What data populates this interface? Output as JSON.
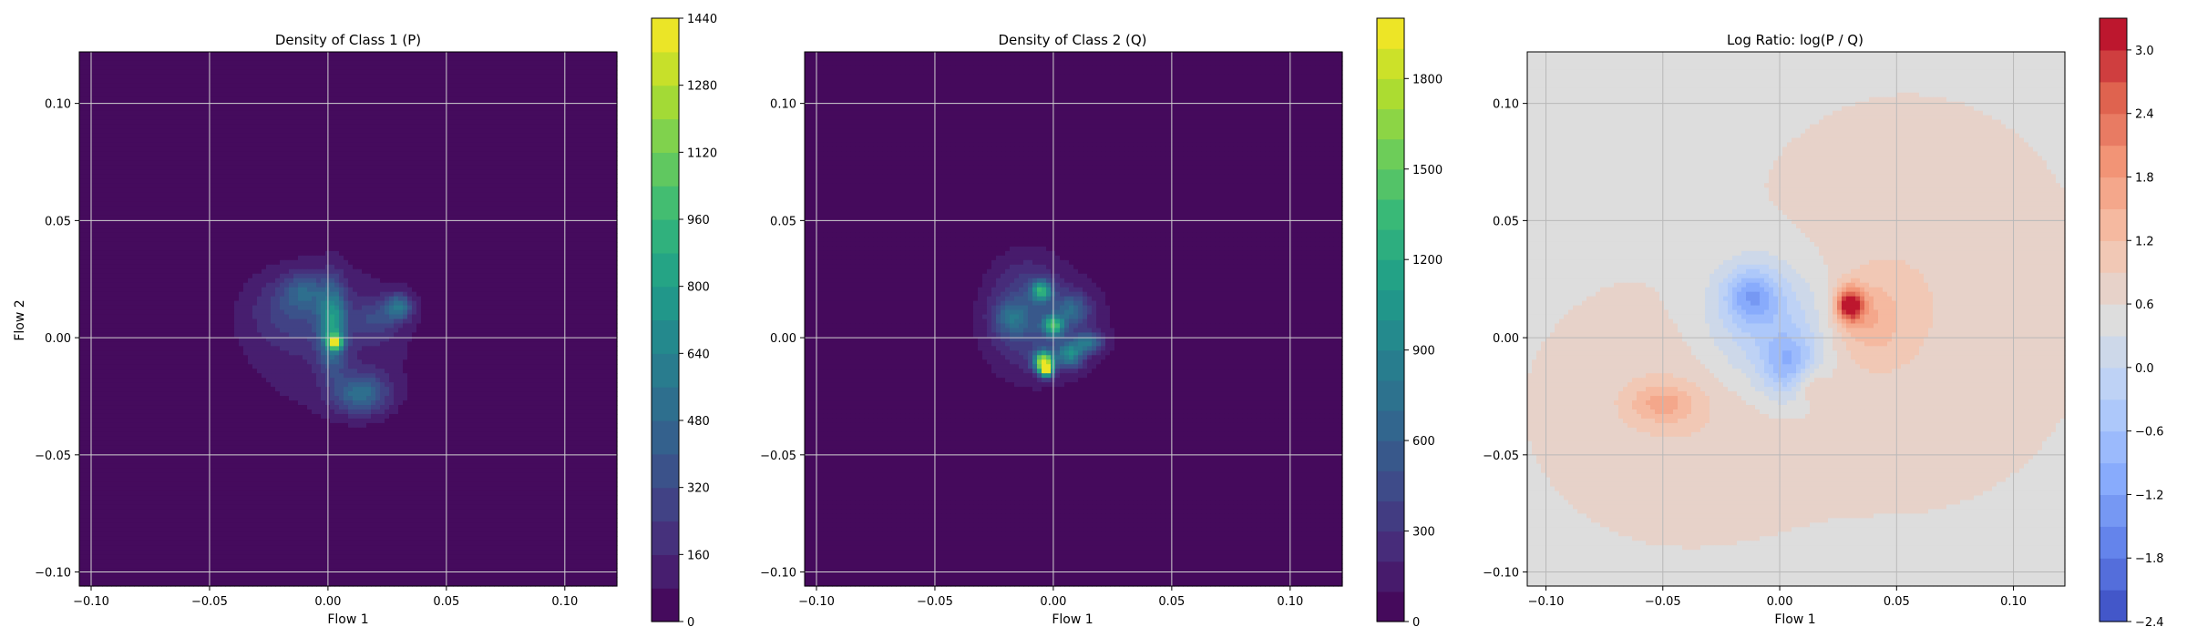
{
  "chart_data": [
    {
      "type": "heatmap",
      "title": "Density of Class 1 (P)",
      "xlabel": "Flow 1",
      "ylabel": "Flow 2",
      "xlim": [
        -0.105,
        0.122
      ],
      "ylim": [
        -0.106,
        0.122
      ],
      "x_ticks": [
        -0.1,
        -0.05,
        0.0,
        0.05,
        0.1
      ],
      "x_tick_labels": [
        "−0.10",
        "−0.05",
        "0.00",
        "0.05",
        "0.10"
      ],
      "y_ticks": [
        -0.1,
        -0.05,
        0.0,
        0.05,
        0.1
      ],
      "y_tick_labels": [
        "−0.10",
        "−0.05",
        "0.00",
        "0.05",
        "0.10"
      ],
      "grid": true,
      "colormap": "viridis",
      "colorbar": {
        "range": [
          0,
          1440
        ],
        "ticks": [
          0,
          160,
          320,
          480,
          640,
          800,
          960,
          1120,
          1280,
          1440
        ],
        "tick_labels": [
          "0",
          "160",
          "320",
          "480",
          "640",
          "800",
          "960",
          "1120",
          "1280",
          "1440"
        ],
        "levels": 18
      },
      "background_value": 0,
      "blobs": [
        {
          "x": 0.0,
          "y": 0.0,
          "sx": 0.03,
          "sy": 0.026,
          "peak": 150
        },
        {
          "x": -0.015,
          "y": 0.012,
          "sx": 0.012,
          "sy": 0.01,
          "peak": 200
        },
        {
          "x": 0.002,
          "y": 0.005,
          "sx": 0.004,
          "sy": 0.012,
          "peak": 650
        },
        {
          "x": 0.003,
          "y": -0.002,
          "sx": 0.002,
          "sy": 0.002,
          "peak": 1000
        },
        {
          "x": 0.03,
          "y": 0.013,
          "sx": 0.004,
          "sy": 0.004,
          "peak": 480
        },
        {
          "x": 0.014,
          "y": -0.024,
          "sx": 0.008,
          "sy": 0.006,
          "peak": 450
        },
        {
          "x": -0.01,
          "y": 0.02,
          "sx": 0.006,
          "sy": 0.005,
          "peak": 260
        },
        {
          "x": 0.02,
          "y": 0.008,
          "sx": 0.006,
          "sy": 0.006,
          "peak": 220
        }
      ]
    },
    {
      "type": "heatmap",
      "title": "Density of Class 2 (Q)",
      "xlabel": "Flow 1",
      "ylabel": "",
      "xlim": [
        -0.105,
        0.122
      ],
      "ylim": [
        -0.106,
        0.122
      ],
      "x_ticks": [
        -0.1,
        -0.05,
        0.0,
        0.05,
        0.1
      ],
      "x_tick_labels": [
        "−0.10",
        "−0.05",
        "0.00",
        "0.05",
        "0.10"
      ],
      "y_ticks": [
        -0.1,
        -0.05,
        0.0,
        0.05,
        0.1
      ],
      "y_tick_labels": [
        "−0.10",
        "−0.05",
        "0.00",
        "0.05",
        "0.10"
      ],
      "grid": true,
      "colormap": "viridis",
      "colorbar": {
        "range": [
          0,
          2000
        ],
        "ticks": [
          0,
          300,
          600,
          900,
          1200,
          1500,
          1800
        ],
        "tick_labels": [
          "0",
          "300",
          "600",
          "900",
          "1200",
          "1500",
          "1800"
        ],
        "levels": 20
      },
      "background_value": 0,
      "blobs": [
        {
          "x": -0.002,
          "y": 0.005,
          "sx": 0.022,
          "sy": 0.02,
          "peak": 200
        },
        {
          "x": -0.012,
          "y": 0.012,
          "sx": 0.01,
          "sy": 0.015,
          "peak": 320
        },
        {
          "x": -0.005,
          "y": 0.02,
          "sx": 0.003,
          "sy": 0.003,
          "peak": 1000
        },
        {
          "x": 0.0,
          "y": 0.005,
          "sx": 0.003,
          "sy": 0.003,
          "peak": 1100
        },
        {
          "x": -0.004,
          "y": -0.01,
          "sx": 0.003,
          "sy": 0.003,
          "peak": 1600
        },
        {
          "x": -0.003,
          "y": -0.014,
          "sx": 0.002,
          "sy": 0.002,
          "peak": 1400
        },
        {
          "x": 0.007,
          "y": -0.007,
          "sx": 0.004,
          "sy": 0.004,
          "peak": 800
        },
        {
          "x": 0.015,
          "y": -0.002,
          "sx": 0.004,
          "sy": 0.003,
          "peak": 650
        },
        {
          "x": 0.008,
          "y": 0.012,
          "sx": 0.005,
          "sy": 0.005,
          "peak": 500
        },
        {
          "x": -0.018,
          "y": 0.008,
          "sx": 0.005,
          "sy": 0.005,
          "peak": 400
        }
      ]
    },
    {
      "type": "heatmap",
      "title": "Log Ratio: log(P / Q)",
      "xlabel": "Flow 1",
      "ylabel": "",
      "xlim": [
        -0.108,
        0.122
      ],
      "ylim": [
        -0.106,
        0.122
      ],
      "x_ticks": [
        -0.1,
        -0.05,
        0.0,
        0.05,
        0.1
      ],
      "x_tick_labels": [
        "−0.10",
        "−0.05",
        "0.00",
        "0.05",
        "0.10"
      ],
      "y_ticks": [
        -0.1,
        -0.05,
        0.0,
        0.05,
        0.1
      ],
      "y_tick_labels": [
        "−0.10",
        "−0.05",
        "0.00",
        "0.05",
        "0.10"
      ],
      "grid": true,
      "colormap": "coolwarm",
      "colorbar": {
        "range": [
          -2.4,
          3.3
        ],
        "ticks": [
          -2.4,
          -1.8,
          -1.2,
          -0.6,
          0.0,
          0.6,
          1.2,
          1.8,
          2.4,
          3.0
        ],
        "tick_labels": [
          "−2.4",
          "−1.8",
          "−1.2",
          "−0.6",
          "0.0",
          "0.6",
          "1.2",
          "1.8",
          "2.4",
          "3.0"
        ],
        "levels": 19
      },
      "background_value": 0.55,
      "blobs": [
        {
          "x": 0.055,
          "y": 0.015,
          "sx": 0.04,
          "sy": 0.045,
          "peak": 0.35
        },
        {
          "x": -0.04,
          "y": -0.03,
          "sx": 0.035,
          "sy": 0.03,
          "peak": 0.35
        },
        {
          "x": -0.005,
          "y": 0.005,
          "sx": 0.02,
          "sy": 0.02,
          "peak": -1.0
        },
        {
          "x": -0.012,
          "y": 0.018,
          "sx": 0.008,
          "sy": 0.008,
          "peak": -1.2
        },
        {
          "x": 0.004,
          "y": -0.012,
          "sx": 0.008,
          "sy": 0.01,
          "peak": -1.1
        },
        {
          "x": 0.03,
          "y": 0.014,
          "sx": 0.004,
          "sy": 0.005,
          "peak": 2.6
        },
        {
          "x": 0.038,
          "y": 0.008,
          "sx": 0.01,
          "sy": 0.012,
          "peak": 0.7
        },
        {
          "x": -0.05,
          "y": -0.028,
          "sx": 0.01,
          "sy": 0.006,
          "peak": 0.8
        },
        {
          "x": 0.012,
          "y": -0.02,
          "sx": 0.005,
          "sy": 0.005,
          "peak": 0.6
        }
      ]
    }
  ]
}
